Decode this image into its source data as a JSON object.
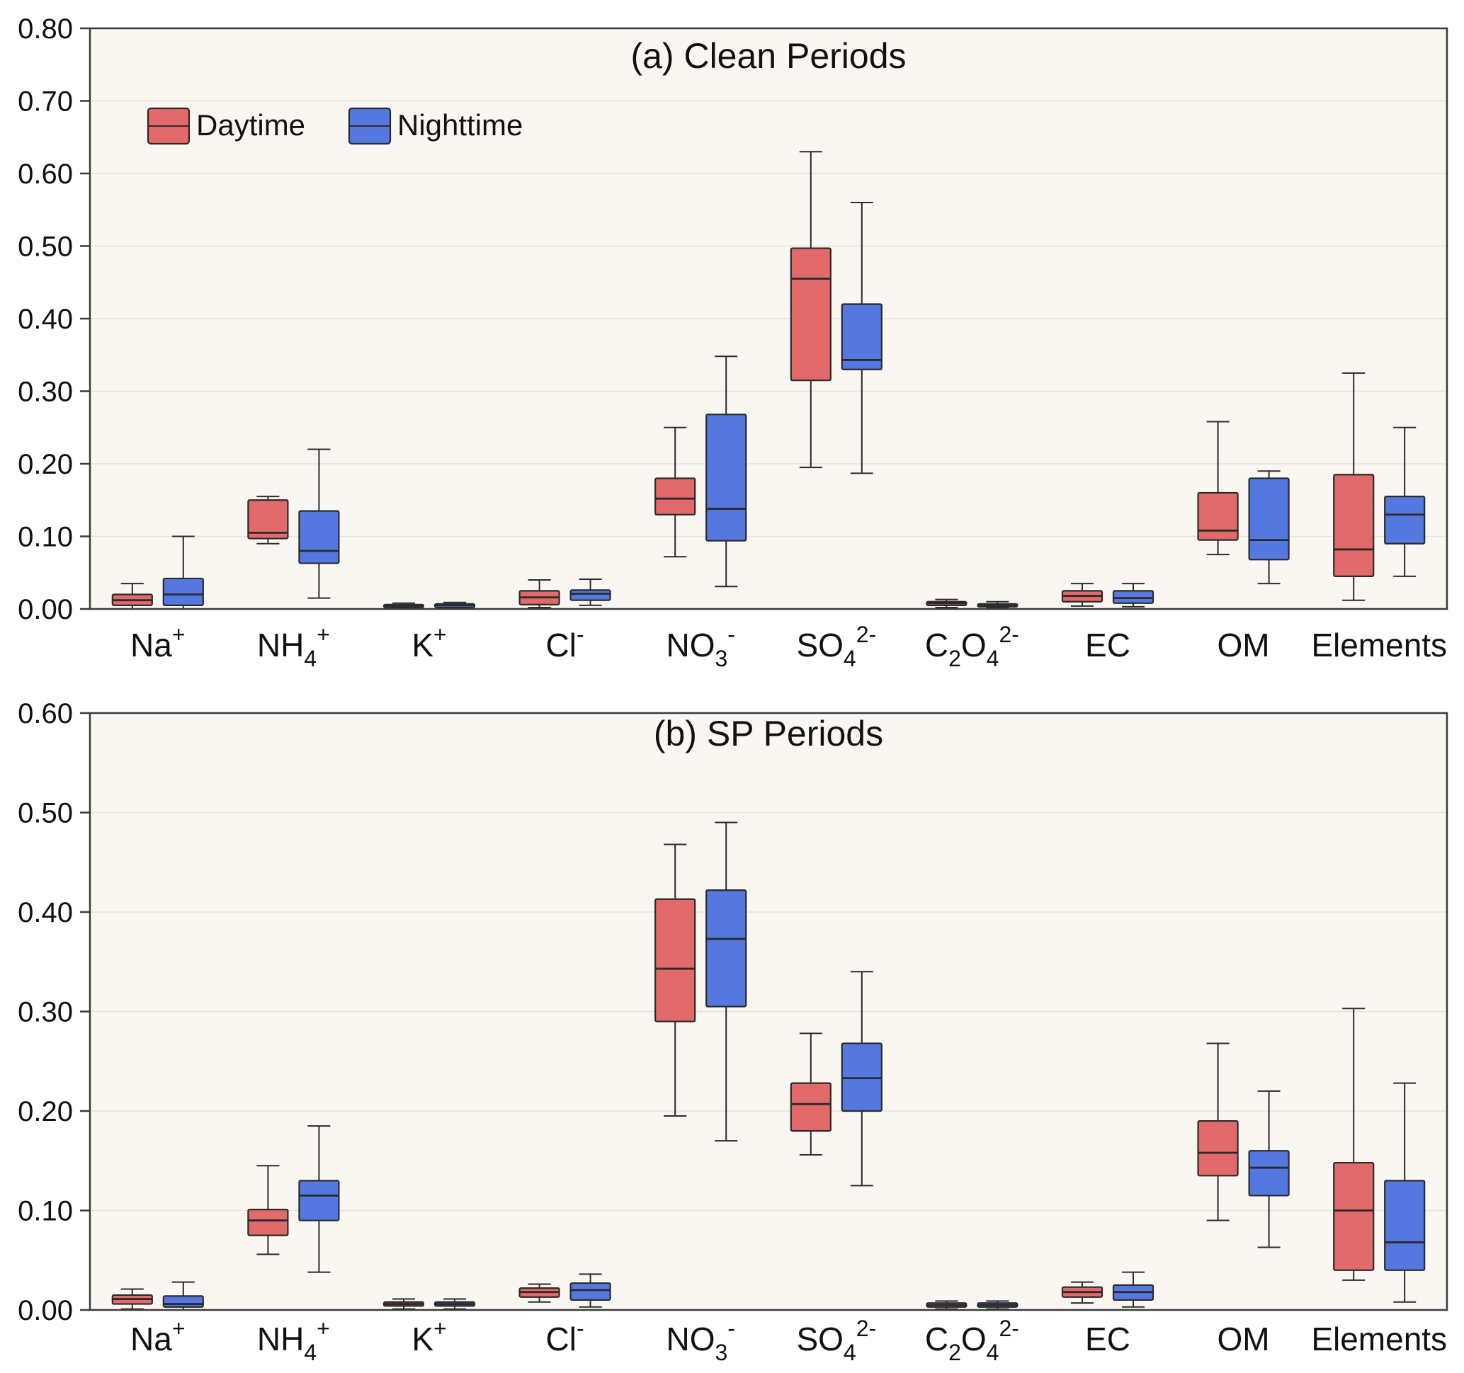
{
  "colors": {
    "daytime": "#E26A6B",
    "nighttime": "#5577E0",
    "box_border": "#2B2B2B",
    "axis": "#3A3A3A",
    "text": "#111111",
    "background": "#FAF7F2",
    "grid": "#E6E2DA"
  },
  "legend": {
    "items": [
      {
        "label": "Daytime",
        "color_key": "daytime"
      },
      {
        "label": "Nighttime",
        "color_key": "nighttime"
      }
    ]
  },
  "chart_data": [
    {
      "type": "boxplot",
      "title": "(a) Clean Periods",
      "ylim": [
        0,
        0.8
      ],
      "ytick_step": 0.1,
      "grid": true,
      "legend_position": "top-left",
      "categories": [
        "Na^+^",
        "NH_4_^+^",
        "K^+^",
        "Cl^-^",
        "NO_3_^-^",
        "SO_4_^2-^",
        "C_2_O_4_^2-^",
        "EC",
        "OM",
        "Elements"
      ],
      "series": [
        {
          "name": "Daytime",
          "boxes": [
            [
              0.0,
              0.005,
              0.012,
              0.02,
              0.035
            ],
            [
              0.09,
              0.097,
              0.105,
              0.15,
              0.155
            ],
            [
              0.0,
              0.002,
              0.004,
              0.006,
              0.008
            ],
            [
              0.002,
              0.006,
              0.016,
              0.025,
              0.04
            ],
            [
              0.072,
              0.13,
              0.152,
              0.18,
              0.25
            ],
            [
              0.195,
              0.315,
              0.455,
              0.497,
              0.63
            ],
            [
              0.002,
              0.005,
              0.008,
              0.01,
              0.013
            ],
            [
              0.004,
              0.01,
              0.018,
              0.025,
              0.035
            ],
            [
              0.075,
              0.095,
              0.108,
              0.16,
              0.258
            ],
            [
              0.012,
              0.045,
              0.082,
              0.185,
              0.325
            ]
          ]
        },
        {
          "name": "Nighttime",
          "boxes": [
            [
              0.0,
              0.005,
              0.02,
              0.042,
              0.1
            ],
            [
              0.015,
              0.063,
              0.08,
              0.135,
              0.22
            ],
            [
              0.0,
              0.002,
              0.005,
              0.007,
              0.009
            ],
            [
              0.005,
              0.012,
              0.021,
              0.026,
              0.041
            ],
            [
              0.031,
              0.094,
              0.138,
              0.268,
              0.348
            ],
            [
              0.187,
              0.33,
              0.343,
              0.42,
              0.56
            ],
            [
              0.001,
              0.003,
              0.005,
              0.007,
              0.01
            ],
            [
              0.003,
              0.008,
              0.015,
              0.025,
              0.035
            ],
            [
              0.035,
              0.068,
              0.095,
              0.18,
              0.19
            ],
            [
              0.045,
              0.09,
              0.13,
              0.155,
              0.25
            ]
          ]
        }
      ]
    },
    {
      "type": "boxplot",
      "title": "(b) SP Periods",
      "ylim": [
        0,
        0.6
      ],
      "ytick_step": 0.1,
      "grid": true,
      "legend_position": "none",
      "categories": [
        "Na^+^",
        "NH_4_^+^",
        "K^+^",
        "Cl^-^",
        "NO_3_^-^",
        "SO_4_^2-^",
        "C_2_O_4_^2-^",
        "EC",
        "OM",
        "Elements"
      ],
      "series": [
        {
          "name": "Daytime",
          "boxes": [
            [
              0.001,
              0.006,
              0.011,
              0.015,
              0.021
            ],
            [
              0.056,
              0.075,
              0.09,
              0.101,
              0.145
            ],
            [
              0.001,
              0.004,
              0.006,
              0.008,
              0.011
            ],
            [
              0.008,
              0.013,
              0.018,
              0.022,
              0.026
            ],
            [
              0.195,
              0.29,
              0.343,
              0.413,
              0.468
            ],
            [
              0.156,
              0.18,
              0.207,
              0.228,
              0.278
            ],
            [
              0.001,
              0.003,
              0.005,
              0.007,
              0.009
            ],
            [
              0.007,
              0.013,
              0.018,
              0.023,
              0.028
            ],
            [
              0.09,
              0.135,
              0.158,
              0.19,
              0.268
            ],
            [
              0.03,
              0.04,
              0.1,
              0.148,
              0.303
            ]
          ]
        },
        {
          "name": "Nighttime",
          "boxes": [
            [
              0.0,
              0.003,
              0.006,
              0.014,
              0.028
            ],
            [
              0.038,
              0.09,
              0.115,
              0.13,
              0.185
            ],
            [
              0.001,
              0.004,
              0.006,
              0.008,
              0.011
            ],
            [
              0.003,
              0.01,
              0.02,
              0.027,
              0.036
            ],
            [
              0.17,
              0.305,
              0.373,
              0.422,
              0.49
            ],
            [
              0.125,
              0.2,
              0.233,
              0.268,
              0.34
            ],
            [
              0.001,
              0.003,
              0.005,
              0.007,
              0.009
            ],
            [
              0.003,
              0.01,
              0.018,
              0.025,
              0.038
            ],
            [
              0.063,
              0.115,
              0.143,
              0.16,
              0.22
            ],
            [
              0.008,
              0.04,
              0.068,
              0.13,
              0.228
            ]
          ]
        }
      ]
    }
  ]
}
